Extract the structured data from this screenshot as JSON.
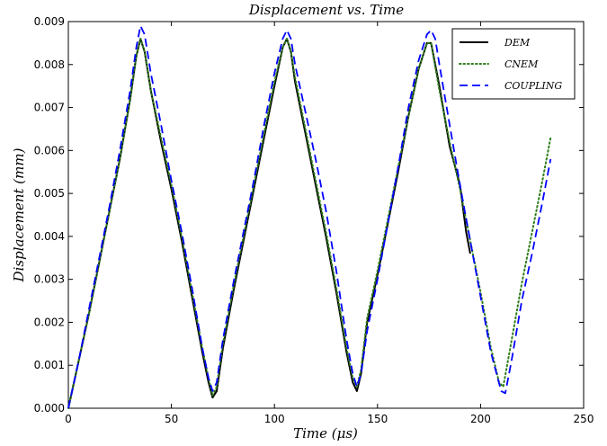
{
  "chart_data": {
    "type": "line",
    "title": "Displacement vs. Time",
    "xlabel": "Time (μs)",
    "ylabel": "Displacement (mm)",
    "xlim": [
      0,
      250
    ],
    "ylim": [
      0,
      0.009
    ],
    "x_ticks": [
      "0",
      "50",
      "100",
      "150",
      "200",
      "250"
    ],
    "y_ticks": [
      "0.000",
      "0.001",
      "0.002",
      "0.003",
      "0.004",
      "0.005",
      "0.006",
      "0.007",
      "0.008",
      "0.009"
    ],
    "grid": false,
    "legend_position": "top-right",
    "series": [
      {
        "name": "DEM",
        "color": "#000000",
        "style": "solid",
        "points": [
          [
            0,
            0
          ],
          [
            5,
            0.0011
          ],
          [
            10,
            0.0022
          ],
          [
            15,
            0.0034
          ],
          [
            20,
            0.0046
          ],
          [
            25,
            0.0058
          ],
          [
            30,
            0.0072
          ],
          [
            33,
            0.0082
          ],
          [
            35,
            0.0086
          ],
          [
            37,
            0.0083
          ],
          [
            40,
            0.0074
          ],
          [
            45,
            0.0062
          ],
          [
            50,
            0.0051
          ],
          [
            55,
            0.0039
          ],
          [
            60,
            0.0026
          ],
          [
            65,
            0.0013
          ],
          [
            68,
            0.0006
          ],
          [
            70,
            0.00025
          ],
          [
            72,
            0.0004
          ],
          [
            75,
            0.0014
          ],
          [
            80,
            0.0027
          ],
          [
            85,
            0.0039
          ],
          [
            90,
            0.0051
          ],
          [
            95,
            0.0063
          ],
          [
            100,
            0.0075
          ],
          [
            104,
            0.0084
          ],
          [
            106,
            0.0086
          ],
          [
            108,
            0.0083
          ],
          [
            110,
            0.0076
          ],
          [
            115,
            0.0064
          ],
          [
            120,
            0.0052
          ],
          [
            125,
            0.004
          ],
          [
            130,
            0.0027
          ],
          [
            135,
            0.0013
          ],
          [
            138,
            0.0006
          ],
          [
            140,
            0.0004
          ],
          [
            142,
            0.0008
          ],
          [
            145,
            0.002
          ],
          [
            150,
            0.0031
          ],
          [
            155,
            0.0043
          ],
          [
            160,
            0.0055
          ],
          [
            165,
            0.0068
          ],
          [
            170,
            0.0079
          ],
          [
            174,
            0.0085
          ],
          [
            176,
            0.0085
          ],
          [
            180,
            0.0075
          ],
          [
            185,
            0.0061
          ],
          [
            190,
            0.0052
          ],
          [
            193,
            0.0041
          ],
          [
            195,
            0.0036
          ]
        ]
      },
      {
        "name": "CNEM",
        "color": "#2e7d1a",
        "style": "dotted",
        "points": [
          [
            0,
            0
          ],
          [
            5,
            0.0011
          ],
          [
            10,
            0.0022
          ],
          [
            15,
            0.0034
          ],
          [
            20,
            0.0046
          ],
          [
            25,
            0.0058
          ],
          [
            30,
            0.0072
          ],
          [
            33,
            0.0082
          ],
          [
            35,
            0.0086
          ],
          [
            37,
            0.0083
          ],
          [
            40,
            0.0074
          ],
          [
            45,
            0.0063
          ],
          [
            50,
            0.0052
          ],
          [
            55,
            0.004
          ],
          [
            60,
            0.0027
          ],
          [
            65,
            0.0014
          ],
          [
            68,
            0.0007
          ],
          [
            70,
            0.0003
          ],
          [
            72,
            0.0005
          ],
          [
            75,
            0.0015
          ],
          [
            80,
            0.0028
          ],
          [
            85,
            0.004
          ],
          [
            90,
            0.0052
          ],
          [
            95,
            0.0064
          ],
          [
            100,
            0.0076
          ],
          [
            104,
            0.0084
          ],
          [
            106,
            0.0086
          ],
          [
            108,
            0.0083
          ],
          [
            110,
            0.0077
          ],
          [
            115,
            0.0065
          ],
          [
            120,
            0.0053
          ],
          [
            125,
            0.0041
          ],
          [
            130,
            0.0028
          ],
          [
            135,
            0.0014
          ],
          [
            138,
            0.0007
          ],
          [
            140,
            0.0005
          ],
          [
            142,
            0.0009
          ],
          [
            145,
            0.0021
          ],
          [
            150,
            0.0032
          ],
          [
            155,
            0.0044
          ],
          [
            160,
            0.0056
          ],
          [
            165,
            0.0068
          ],
          [
            170,
            0.0079
          ],
          [
            174,
            0.0085
          ],
          [
            176,
            0.0085
          ],
          [
            180,
            0.0074
          ],
          [
            185,
            0.0062
          ],
          [
            190,
            0.0051
          ],
          [
            195,
            0.0039
          ],
          [
            200,
            0.0027
          ],
          [
            205,
            0.0014
          ],
          [
            209,
            0.0006
          ],
          [
            211,
            0.0005
          ],
          [
            214,
            0.0013
          ],
          [
            220,
            0.0029
          ],
          [
            225,
            0.0041
          ],
          [
            230,
            0.0053
          ],
          [
            234,
            0.0063
          ]
        ]
      },
      {
        "name": "COUPLING",
        "color": "#0000ff",
        "style": "dashed",
        "points": [
          [
            0,
            0
          ],
          [
            5,
            0.0011
          ],
          [
            10,
            0.0023
          ],
          [
            15,
            0.0035
          ],
          [
            20,
            0.0047
          ],
          [
            25,
            0.006
          ],
          [
            30,
            0.0074
          ],
          [
            33,
            0.0084
          ],
          [
            35,
            0.0089
          ],
          [
            37,
            0.0087
          ],
          [
            40,
            0.0078
          ],
          [
            45,
            0.0066
          ],
          [
            50,
            0.0053
          ],
          [
            55,
            0.0041
          ],
          [
            60,
            0.0028
          ],
          [
            65,
            0.0014
          ],
          [
            68,
            0.0007
          ],
          [
            70,
            0.0004
          ],
          [
            72,
            0.0006
          ],
          [
            75,
            0.0016
          ],
          [
            80,
            0.0029
          ],
          [
            85,
            0.0041
          ],
          [
            90,
            0.0053
          ],
          [
            95,
            0.0066
          ],
          [
            100,
            0.0078
          ],
          [
            104,
            0.0086
          ],
          [
            106,
            0.0088
          ],
          [
            108,
            0.0086
          ],
          [
            110,
            0.008
          ],
          [
            115,
            0.0069
          ],
          [
            120,
            0.0058
          ],
          [
            125,
            0.0046
          ],
          [
            130,
            0.0032
          ],
          [
            135,
            0.0016
          ],
          [
            138,
            0.0008
          ],
          [
            140,
            0.0005
          ],
          [
            142,
            0.0008
          ],
          [
            145,
            0.0018
          ],
          [
            150,
            0.003
          ],
          [
            155,
            0.0043
          ],
          [
            160,
            0.0056
          ],
          [
            165,
            0.007
          ],
          [
            170,
            0.0081
          ],
          [
            174,
            0.0087
          ],
          [
            176,
            0.0088
          ],
          [
            178,
            0.0086
          ],
          [
            180,
            0.008
          ],
          [
            185,
            0.0066
          ],
          [
            190,
            0.0052
          ],
          [
            195,
            0.0039
          ],
          [
            200,
            0.0026
          ],
          [
            205,
            0.0013
          ],
          [
            210,
            0.0004
          ],
          [
            212,
            0.00035
          ],
          [
            215,
            0.0011
          ],
          [
            220,
            0.0025
          ],
          [
            225,
            0.0036
          ],
          [
            230,
            0.0048
          ],
          [
            234,
            0.0058
          ]
        ]
      }
    ]
  }
}
